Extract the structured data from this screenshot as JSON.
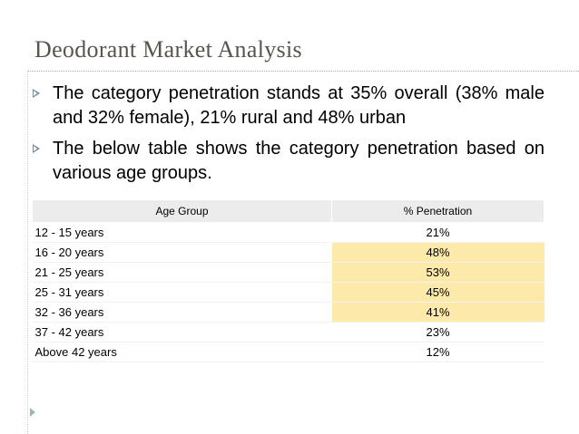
{
  "header": {
    "title": "Deodorant Market Analysis"
  },
  "bullets": [
    "The category penetration stands at 35% overall (38% male and 32% female), 21% rural and 48% urban",
    "The below table shows the category penetration based on various age groups."
  ],
  "table": {
    "columns": [
      "Age Group",
      "% Penetration"
    ],
    "rows": [
      [
        "12 - 15 years",
        "21%"
      ],
      [
        "16 - 20 years",
        "48%"
      ],
      [
        "21 - 25 years",
        "53%"
      ],
      [
        "25 - 31 years",
        "45%"
      ],
      [
        "32 - 36 years",
        "41%"
      ],
      [
        "37 - 42 years",
        "23%"
      ],
      [
        "Above 42 years",
        "12%"
      ]
    ]
  }
}
